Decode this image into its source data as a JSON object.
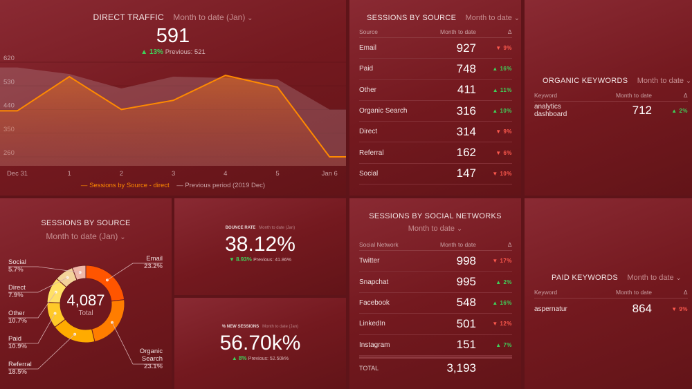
{
  "direct_traffic": {
    "title": "DIRECT TRAFFIC",
    "period": "Month to date (Jan)",
    "value": "591",
    "delta": "13%",
    "delta_dir": "up",
    "previous": "Previous: 521",
    "chart_data": {
      "type": "area",
      "x": [
        "Dec 31",
        "1",
        "2",
        "3",
        "4",
        "5",
        "Jan 6"
      ],
      "yticks": [
        "620",
        "530",
        "440",
        "350",
        "260"
      ],
      "ylim": [
        260,
        620
      ],
      "series": [
        {
          "name": "Sessions by Source - direct",
          "color": "#ff8a00",
          "values": [
            435,
            565,
            440,
            475,
            570,
            525,
            260
          ]
        },
        {
          "name": "Previous period (2019 Dec)",
          "color": "#b07a80",
          "values": [
            600,
            575,
            520,
            565,
            560,
            555,
            440
          ]
        }
      ],
      "legend": "bottom"
    }
  },
  "sessions_table": {
    "title": "SESSIONS BY SOURCE",
    "period": "Month to date",
    "cols": [
      "Source",
      "Month to date",
      "Δ"
    ],
    "rows": [
      [
        "Email",
        "927",
        "9%",
        "dn"
      ],
      [
        "Paid",
        "748",
        "16%",
        "up"
      ],
      [
        "Other",
        "411",
        "11%",
        "up"
      ],
      [
        "Organic Search",
        "316",
        "10%",
        "up"
      ],
      [
        "Direct",
        "314",
        "9%",
        "dn"
      ],
      [
        "Referral",
        "162",
        "6%",
        "dn"
      ],
      [
        "Social",
        "147",
        "10%",
        "dn"
      ]
    ]
  },
  "organic": {
    "title": "ORGANIC KEYWORDS",
    "period": "Month to date",
    "cols": [
      "Keyword",
      "Month to date",
      "Δ"
    ],
    "rows": [
      [
        "analytics dashboard",
        "712",
        "2%",
        "up"
      ]
    ]
  },
  "donut": {
    "title": "SESSIONS BY SOURCE",
    "period": "Month to date (Jan)",
    "total": "4,087",
    "total_label": "Total",
    "chart_data": {
      "type": "pie",
      "slices": [
        {
          "label": "Email",
          "value": 23.2,
          "pct": "23.2%",
          "color": "#ff5500"
        },
        {
          "label": "Organic Search",
          "value": 23.1,
          "pct": "23.1%",
          "color": "#ff7d00"
        },
        {
          "label": "Referral",
          "value": 18.5,
          "pct": "18.5%",
          "color": "#ffab00"
        },
        {
          "label": "Paid",
          "value": 10.9,
          "pct": "10.9%",
          "color": "#ffc928"
        },
        {
          "label": "Other",
          "value": 10.7,
          "pct": "10.7%",
          "color": "#ffe066"
        },
        {
          "label": "Direct",
          "value": 7.9,
          "pct": "7.9%",
          "color": "#f3d39a"
        },
        {
          "label": "Social",
          "value": 5.7,
          "pct": "5.7%",
          "color": "#f0b7a8"
        }
      ]
    }
  },
  "bounce": {
    "title": "BOUNCE RATE",
    "period": "Month to date (Jan)",
    "value": "38.12%",
    "delta": "8.93%",
    "previous": "Previous: 41.86%"
  },
  "new_sessions": {
    "title": "% NEW SESSIONS",
    "period": "Month to date (Jan)",
    "value": "56.70k%",
    "delta": "8%",
    "previous": "Previous: 52.50k%"
  },
  "social": {
    "title": "SESSIONS BY SOCIAL NETWORKS",
    "period": "Month to date",
    "cols": [
      "Social Network",
      "Month to date",
      "Δ"
    ],
    "rows": [
      [
        "Twitter",
        "998",
        "17%",
        "dn"
      ],
      [
        "Snapchat",
        "995",
        "2%",
        "up"
      ],
      [
        "Facebook",
        "548",
        "16%",
        "up"
      ],
      [
        "LinkedIn",
        "501",
        "12%",
        "dn"
      ],
      [
        "Instagram",
        "151",
        "7%",
        "up"
      ]
    ],
    "total_label": "TOTAL",
    "total": "3,193"
  },
  "paid": {
    "title": "PAID KEYWORDS",
    "period": "Month to date",
    "cols": [
      "Keyword",
      "Month to date",
      "Δ"
    ],
    "rows": [
      [
        "aspernatur",
        "864",
        "9%",
        "dn"
      ]
    ]
  }
}
